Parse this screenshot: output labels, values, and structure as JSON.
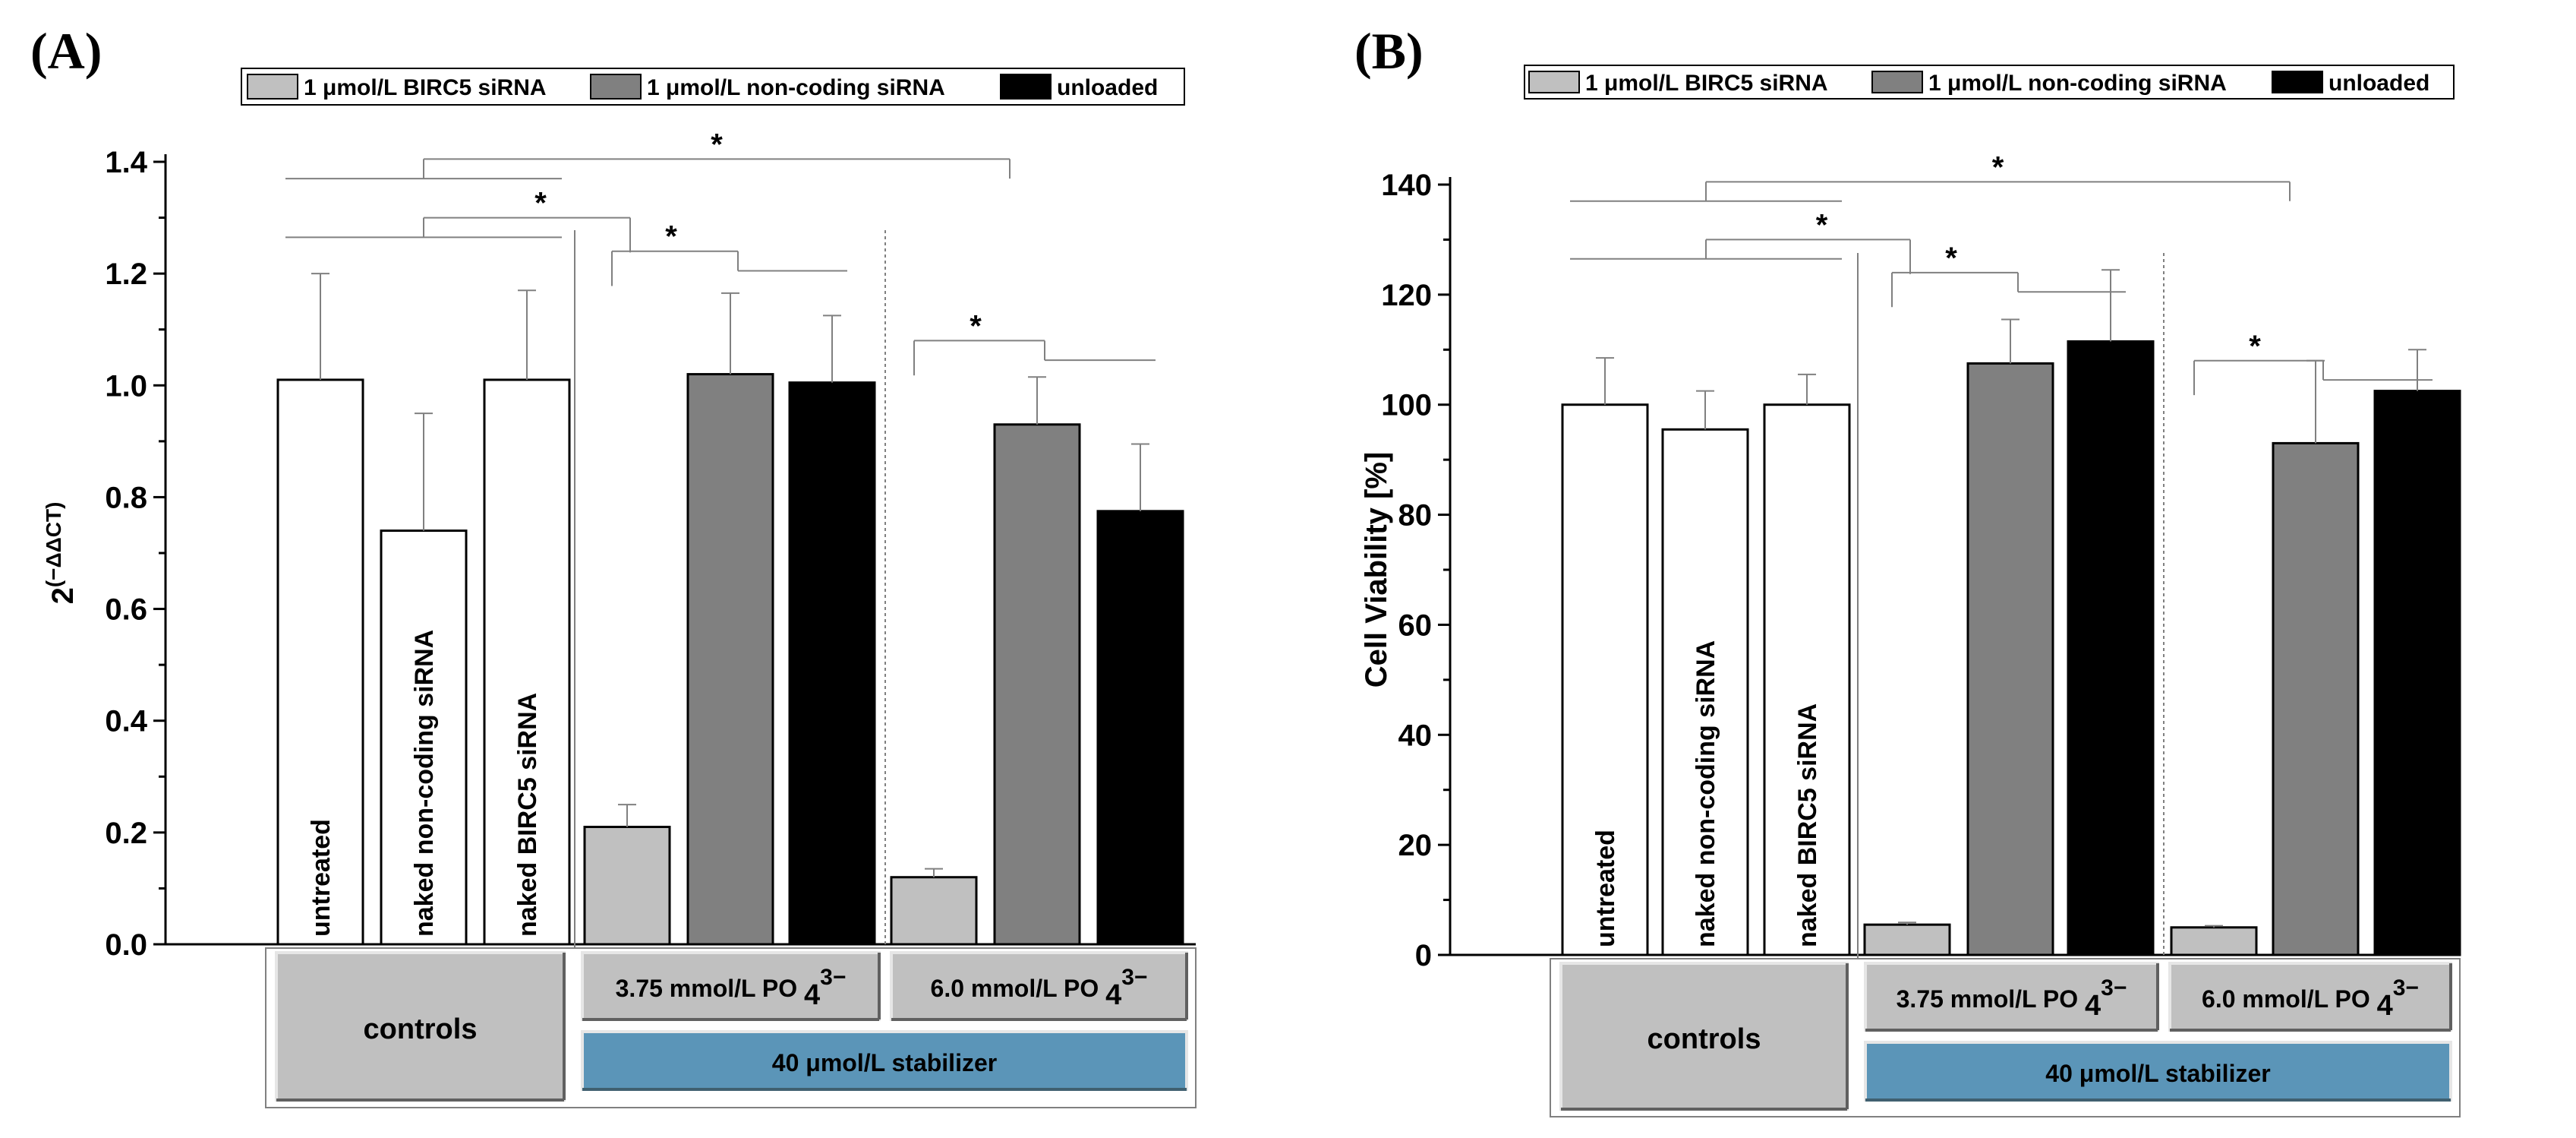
{
  "legend": {
    "items": [
      {
        "label": "1 μmol/L BIRC5 siRNA",
        "color": "#c0c0c0"
      },
      {
        "label": "1 μmol/L non-coding siRNA",
        "color": "#808080"
      },
      {
        "label": "unloaded",
        "color": "#000000"
      }
    ]
  },
  "bottom_labels": {
    "controls": "controls",
    "low": "3.75 mmol/L PO",
    "high": "6.0 mmol/L PO",
    "sub": "4",
    "sup": "3−",
    "stabilizer": "40 μmol/L stabilizer"
  },
  "colors": {
    "control": "#ffffff",
    "birc5": "#c0c0c0",
    "noncoding": "#808080",
    "unloaded": "#000000",
    "box_gray": "#c0c0c0",
    "box_blue": "#5b95b8"
  },
  "significance": "*",
  "chart_data": [
    {
      "type": "bar",
      "panel": "(A)",
      "ylabel": "2",
      "ylabel_sup": "(−ΔΔCT)",
      "ylim": [
        0,
        1.4
      ],
      "yticks": [
        "0.0",
        "0.2",
        "0.4",
        "0.6",
        "0.8",
        "1.0",
        "1.2",
        "1.4"
      ],
      "ytick_values": [
        0,
        0.2,
        0.4,
        0.6,
        0.8,
        1.0,
        1.2,
        1.4
      ],
      "bars": [
        {
          "label": "untreated",
          "group": "control",
          "value": 1.01,
          "error": 0.19
        },
        {
          "label": "naked non-coding siRNA",
          "group": "control",
          "value": 0.74,
          "error": 0.21
        },
        {
          "label": "naked BIRC5 siRNA",
          "group": "control",
          "value": 1.01,
          "error": 0.16
        },
        {
          "label": "",
          "group": "birc5",
          "value": 0.21,
          "error": 0.04
        },
        {
          "label": "",
          "group": "noncoding",
          "value": 1.02,
          "error": 0.145
        },
        {
          "label": "",
          "group": "unloaded",
          "value": 1.005,
          "error": 0.12
        },
        {
          "label": "",
          "group": "birc5",
          "value": 0.12,
          "error": 0.015
        },
        {
          "label": "",
          "group": "noncoding",
          "value": 0.93,
          "error": 0.085
        },
        {
          "label": "",
          "group": "unloaded",
          "value": 0.775,
          "error": 0.12
        }
      ]
    },
    {
      "type": "bar",
      "panel": "(B)",
      "ylabel": "Cell Viability [%]",
      "ylim": [
        0,
        140
      ],
      "yticks": [
        "0",
        "20",
        "40",
        "60",
        "80",
        "100",
        "120",
        "140"
      ],
      "ytick_values": [
        0,
        20,
        40,
        60,
        80,
        100,
        120,
        140
      ],
      "bars": [
        {
          "label": "untreated",
          "group": "control",
          "value": 100,
          "error": 8.5
        },
        {
          "label": "naked non-coding siRNA",
          "group": "control",
          "value": 95.5,
          "error": 7
        },
        {
          "label": "naked BIRC5 siRNA",
          "group": "control",
          "value": 100,
          "error": 5.5
        },
        {
          "label": "",
          "group": "birc5",
          "value": 5.5,
          "error": 0.4
        },
        {
          "label": "",
          "group": "noncoding",
          "value": 107.5,
          "error": 8
        },
        {
          "label": "",
          "group": "unloaded",
          "value": 111.5,
          "error": 13
        },
        {
          "label": "",
          "group": "birc5",
          "value": 5,
          "error": 0.3
        },
        {
          "label": "",
          "group": "noncoding",
          "value": 93,
          "error": 15
        },
        {
          "label": "",
          "group": "unloaded",
          "value": 102.5,
          "error": 7.5
        }
      ]
    }
  ]
}
